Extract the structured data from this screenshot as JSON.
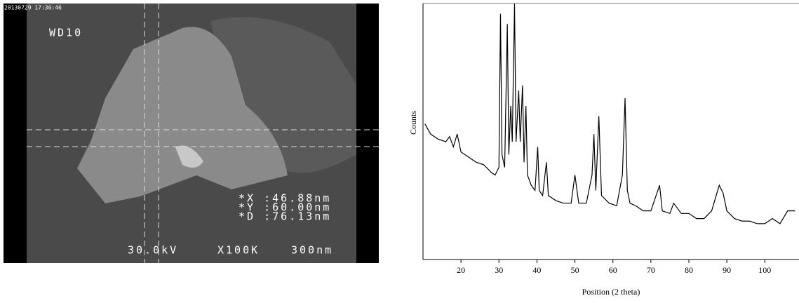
{
  "sem": {
    "timestamp": "20130729 17:30:46",
    "working_distance": "WD10",
    "x_measure": "*X :46.88nm",
    "y_measure": "*Y :60.00nm",
    "d_measure": "*D :76.13nm",
    "voltage": "30.0kV",
    "magnification": "X100K",
    "scale": "300nm"
  },
  "chart_data": {
    "type": "line",
    "ylabel": "Counts",
    "xlabel": "Position (2 theta)",
    "xlim": [
      10,
      109
    ],
    "ylim": [
      0,
      100
    ],
    "xticks": [
      20,
      30,
      40,
      50,
      60,
      70,
      80,
      90,
      100
    ],
    "series": [
      {
        "color": "#000000",
        "x": [
          10.5,
          12,
          14,
          16,
          17,
          18,
          19,
          20,
          22,
          24,
          26,
          28,
          29,
          30,
          30.4,
          30.8,
          31.5,
          32.2,
          32.6,
          33.1,
          33.5,
          34.1,
          34.5,
          35.2,
          35.6,
          36.2,
          36.6,
          37.1,
          37.5,
          38.5,
          39.5,
          40.2,
          40.6,
          41.5,
          42.5,
          43,
          45,
          47,
          49,
          50,
          51,
          53,
          54.5,
          55,
          55.5,
          56.3,
          57,
          59,
          61,
          62.5,
          63.2,
          63.8,
          64.5,
          66,
          68,
          70,
          72.3,
          73,
          75,
          76,
          78,
          80,
          82,
          84,
          86,
          88,
          89,
          90,
          92,
          94,
          96,
          98,
          100,
          102,
          104,
          106,
          108
        ],
        "values": [
          53,
          49,
          47,
          46,
          48,
          44,
          49,
          42,
          40,
          38,
          37,
          34,
          33,
          36,
          96,
          41,
          36,
          92,
          41,
          60,
          46,
          100,
          46,
          66,
          46,
          68,
          38,
          60,
          33,
          29,
          27,
          44,
          27,
          25,
          38,
          25,
          23,
          22,
          22,
          33,
          22,
          22,
          33,
          49,
          27,
          56,
          25,
          22,
          21,
          33,
          63,
          27,
          22,
          21,
          19,
          19,
          29,
          19,
          18,
          22,
          18,
          18,
          16,
          16,
          19,
          29,
          26,
          19,
          16,
          15,
          15,
          14,
          14,
          16,
          14,
          19,
          19
        ]
      }
    ]
  }
}
